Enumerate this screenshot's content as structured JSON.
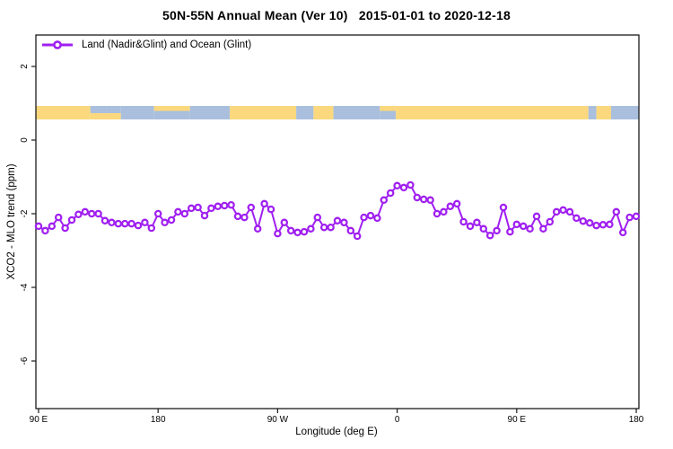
{
  "window": {
    "title": "50N-55N Annual Mean (Ver 10)   2015-01-01 to 2020-12-18"
  },
  "legend": {
    "label": "Land (Nadir&Glint) and Ocean (Glint)"
  },
  "colors": {
    "line": "#A020F0",
    "marker_fill": "#FFFFFF",
    "land": "#FBD87D",
    "ocean": "#A9BFDD",
    "axis": "#1a1a1a",
    "background": "#FFFFFF"
  },
  "chart_data": {
    "type": "line",
    "title": "50N-55N Annual Mean (Ver 10)   2015-01-01 to 2020-12-18",
    "xlabel": "Longitude (deg E)",
    "ylabel": "XCO2 - MLO trend (ppm)",
    "grid": false,
    "legend_position": "top-left-inside",
    "x_axis": {
      "tick_labels": [
        "90 E",
        "180",
        "90 W",
        "0",
        "90 E",
        "180"
      ],
      "tick_lon": [
        90,
        180,
        270,
        360,
        450,
        540
      ],
      "range_lon": [
        88,
        542
      ]
    },
    "y_axis": {
      "tick_labels": [
        "2",
        "0",
        "-2",
        "-4",
        "-6"
      ],
      "ticks": [
        2,
        0,
        -2,
        -4,
        -6
      ],
      "ylim": [
        -7.3,
        2.9
      ]
    },
    "series": [
      {
        "name": "Land (Nadir&Glint) and Ocean (Glint)",
        "marker": "open-circle",
        "lon_deg_east": [
          90,
          95,
          100,
          105,
          110,
          115,
          120,
          125,
          130,
          135,
          140,
          145,
          150,
          155,
          160,
          165,
          170,
          175,
          180,
          185,
          190,
          195,
          200,
          205,
          210,
          215,
          220,
          225,
          230,
          235,
          240,
          245,
          250,
          255,
          260,
          265,
          270,
          275,
          280,
          285,
          290,
          295,
          300,
          305,
          310,
          315,
          320,
          325,
          330,
          335,
          340,
          345,
          350,
          355,
          360,
          365,
          370,
          375,
          380,
          385,
          390,
          395,
          400,
          405,
          410,
          415,
          420,
          425,
          430,
          435,
          440,
          445,
          450,
          455,
          460,
          465,
          470,
          475,
          480,
          485,
          490,
          495,
          500,
          505,
          510,
          515,
          520,
          525,
          530,
          535,
          540
        ],
        "values": [
          -2.34,
          -2.46,
          -2.34,
          -2.1,
          -2.39,
          -2.17,
          -2.02,
          -1.95,
          -2.0,
          -2.0,
          -2.19,
          -2.24,
          -2.27,
          -2.27,
          -2.27,
          -2.32,
          -2.24,
          -2.39,
          -2.0,
          -2.24,
          -2.17,
          -1.95,
          -2.0,
          -1.85,
          -1.83,
          -2.05,
          -1.85,
          -1.8,
          -1.78,
          -1.76,
          -2.07,
          -2.1,
          -1.83,
          -2.41,
          -1.73,
          -1.88,
          -2.54,
          -2.24,
          -2.46,
          -2.51,
          -2.49,
          -2.41,
          -2.1,
          -2.37,
          -2.37,
          -2.19,
          -2.24,
          -2.46,
          -2.61,
          -2.1,
          -2.05,
          -2.12,
          -1.63,
          -1.44,
          -1.24,
          -1.29,
          -1.22,
          -1.56,
          -1.61,
          -1.63,
          -2.0,
          -1.95,
          -1.8,
          -1.73,
          -2.22,
          -2.34,
          -2.24,
          -2.41,
          -2.59,
          -2.46,
          -1.83,
          -2.49,
          -2.29,
          -2.34,
          -2.41,
          -2.07,
          -2.41,
          -2.22,
          -1.95,
          -1.9,
          -1.95,
          -2.12,
          -2.2,
          -2.25,
          -2.32,
          -2.3,
          -2.29,
          -1.95,
          -2.51,
          -2.1,
          -2.07
        ]
      }
    ],
    "map_strip": {
      "description": "land/ocean band across plot near value +0.75",
      "value_top": 0.93,
      "value_bottom": 0.56,
      "segments": [
        {
          "from_lon": 88,
          "to_lon": 129,
          "type": "land"
        },
        {
          "from_lon": 129,
          "to_lon": 141,
          "type": "coast-top-ocean"
        },
        {
          "from_lon": 141,
          "to_lon": 152,
          "type": "coast-top-ocean"
        },
        {
          "from_lon": 152,
          "to_lon": 177,
          "type": "ocean"
        },
        {
          "from_lon": 177,
          "to_lon": 204,
          "type": "coast-top-land"
        },
        {
          "from_lon": 204,
          "to_lon": 234,
          "type": "ocean"
        },
        {
          "from_lon": 234,
          "to_lon": 284,
          "type": "land"
        },
        {
          "from_lon": 284,
          "to_lon": 297,
          "type": "ocean"
        },
        {
          "from_lon": 297,
          "to_lon": 312,
          "type": "land"
        },
        {
          "from_lon": 312,
          "to_lon": 347,
          "type": "ocean"
        },
        {
          "from_lon": 347,
          "to_lon": 359,
          "type": "coast-top-land"
        },
        {
          "from_lon": 359,
          "to_lon": 504,
          "type": "land"
        },
        {
          "from_lon": 504,
          "to_lon": 510,
          "type": "ocean"
        },
        {
          "from_lon": 510,
          "to_lon": 521,
          "type": "land"
        },
        {
          "from_lon": 521,
          "to_lon": 542,
          "type": "ocean"
        }
      ]
    }
  }
}
